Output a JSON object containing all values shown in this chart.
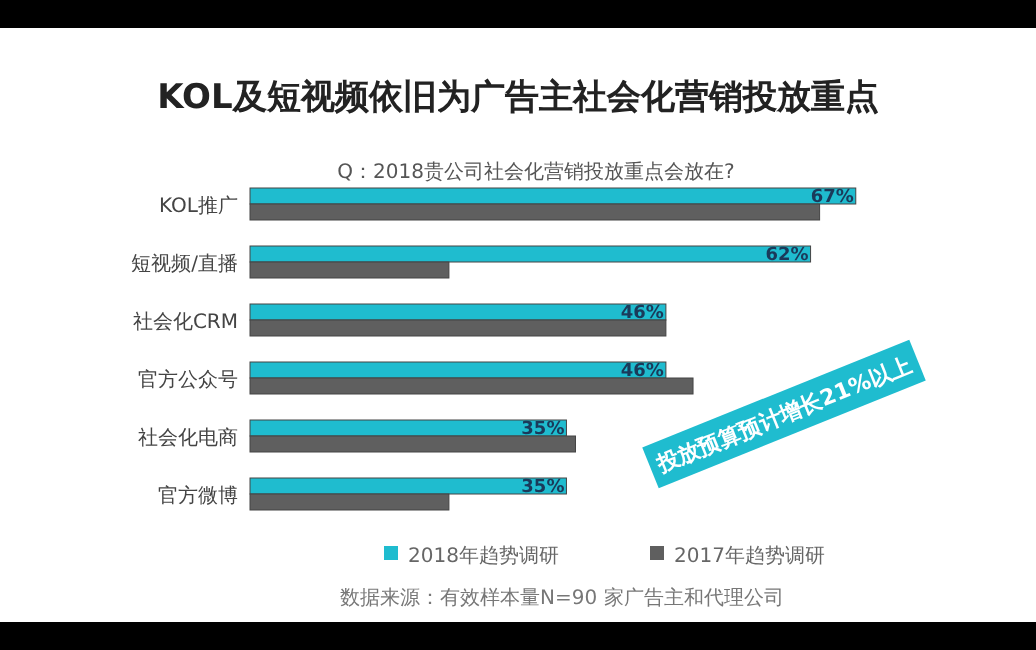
{
  "chart_data": {
    "type": "bar",
    "orientation": "horizontal",
    "title": "KOL及短视频依旧为广告主社会化营销投放重点",
    "subtitle": "Q：2018贵公司社会化营销投放重点会放在?",
    "categories": [
      "KOL推广",
      "短视频/直播",
      "社会化CRM",
      "官方公众号",
      "社会化电商",
      "官方微博"
    ],
    "series": [
      {
        "name": "2018年趋势调研",
        "color": "#1fbccf",
        "values": [
          67,
          62,
          46,
          46,
          35,
          35
        ],
        "value_labels": [
          "67%",
          "62%",
          "46%",
          "46%",
          "35%",
          "35%"
        ]
      },
      {
        "name": "2017年趋势调研",
        "color": "#5f5f5f",
        "values": [
          63,
          22,
          46,
          49,
          36,
          22
        ]
      }
    ],
    "legend": "bottom",
    "annotations": [
      "投放预算预计增长21%以上",
      "数据来源：有效样本量N=90 家广告主和代理公司"
    ]
  }
}
